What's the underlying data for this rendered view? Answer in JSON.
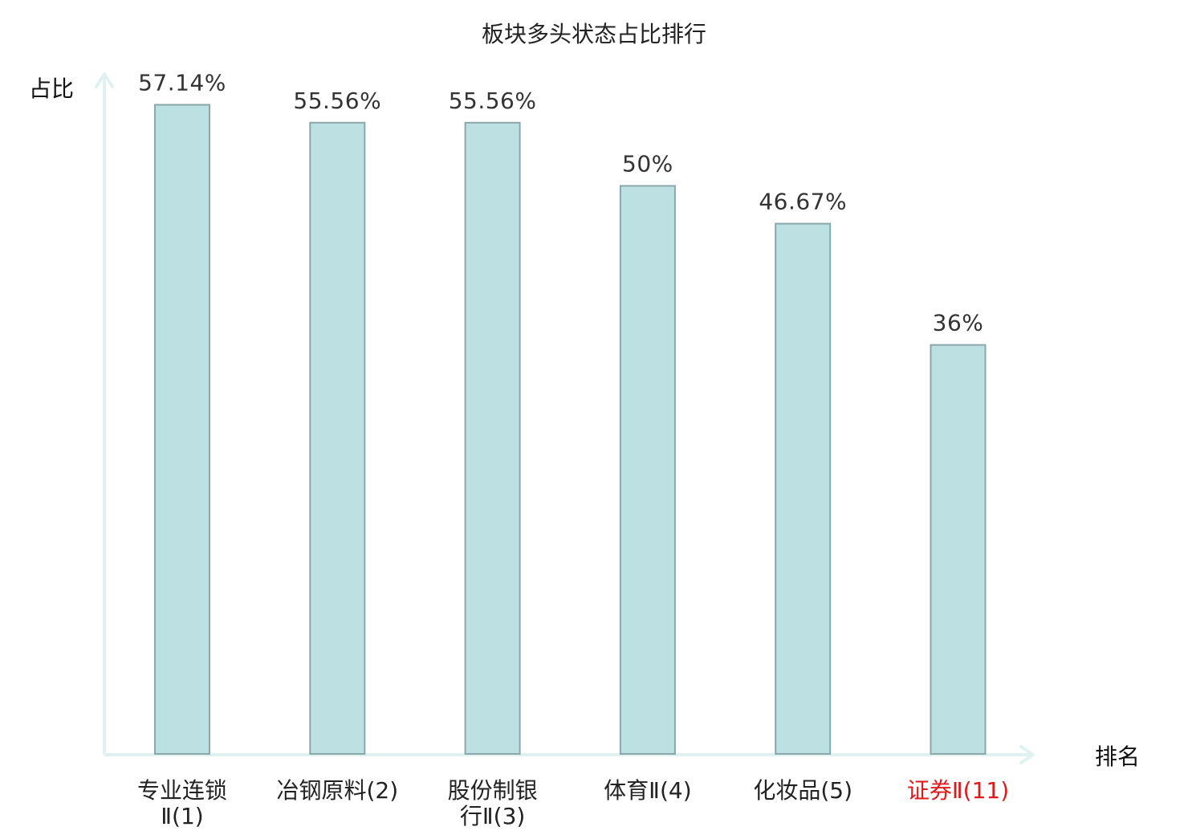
{
  "chart_data": {
    "type": "bar",
    "title": "板块多头状态占比排行",
    "ylabel": "占比",
    "xlabel": "排名",
    "categories": [
      [
        "专业连锁",
        "Ⅱ(1)"
      ],
      [
        "冶钢原料(2)"
      ],
      [
        "股份制银",
        "行Ⅱ(3)"
      ],
      [
        "体育Ⅱ(4)"
      ],
      [
        "化妆品(5)"
      ],
      [
        "证券Ⅱ(11)"
      ]
    ],
    "values": [
      57.14,
      55.56,
      55.56,
      50,
      46.67,
      36
    ],
    "value_labels": [
      "57.14%",
      "55.56%",
      "55.56%",
      "50%",
      "46.67%",
      "36%"
    ],
    "highlight_index": 5,
    "ylim": [
      0,
      60
    ],
    "grid": false,
    "legend": "none"
  },
  "colors": {
    "bar_fill": "#bde0e3",
    "bar_stroke": "#8aa7a9",
    "axis": "#dff2ef",
    "highlight_text": "#e0191b"
  }
}
